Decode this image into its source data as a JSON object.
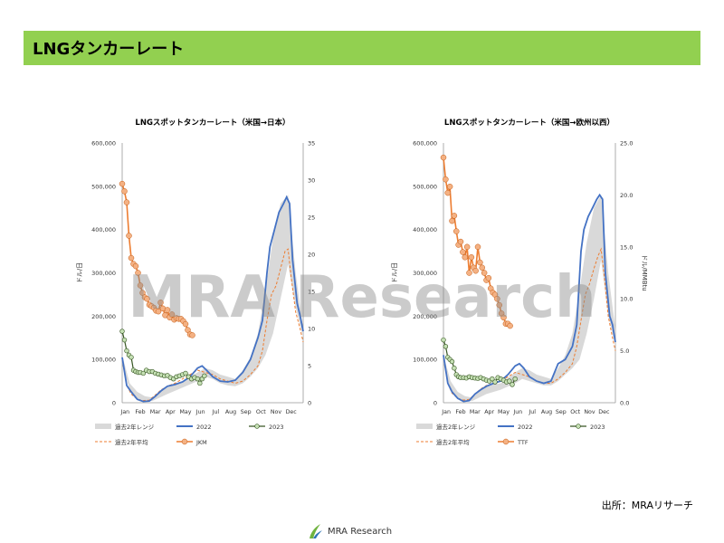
{
  "header": {
    "title": "LNGタンカーレート"
  },
  "watermark": "MRA Research",
  "footer": {
    "source": "出所：MRAリサーチ",
    "logo_text": "MRA Research"
  },
  "colors": {
    "header_bg": "#92d050",
    "range": "#d9d9d9",
    "y2022": "#4472c4",
    "y2023": "#375623",
    "avg": "#ed7d31",
    "marker_fill": "#f4b183",
    "green_fill": "#c5e0b4"
  },
  "chart_data": [
    {
      "type": "line",
      "title": "LNGスポットタンカーレート（米国→日本）",
      "ylabel": "ドル/日",
      "y2label": "ドル/MMBtu",
      "ylim": [
        0,
        600000
      ],
      "yticks": [
        "0",
        "100,000",
        "200,000",
        "300,000",
        "400,000",
        "500,000",
        "600,000"
      ],
      "y2lim": [
        0,
        35
      ],
      "y2ticks": [
        "0",
        "5",
        "10",
        "15",
        "20",
        "25",
        "30",
        "35"
      ],
      "xlim": [
        0,
        12
      ],
      "xticks": [
        "Jan",
        "Feb",
        "Mar",
        "Apr",
        "May",
        "Jun",
        "Jul",
        "Aug",
        "Sep",
        "Oct",
        "Nov",
        "Dec"
      ],
      "legend": [
        "過去2年レンジ",
        "2022",
        "2023",
        "過去2年平均",
        "JKM"
      ],
      "range_x": [
        0,
        0.5,
        1,
        1.5,
        2,
        3,
        4,
        5,
        5.5,
        6,
        6.5,
        7,
        7.5,
        8,
        8.5,
        9,
        9.5,
        10,
        10.5,
        11,
        11.5,
        12
      ],
      "range_lo": [
        90000,
        30000,
        10000,
        4000,
        4000,
        20000,
        35000,
        50000,
        60000,
        55000,
        45000,
        40000,
        38000,
        45000,
        60000,
        80000,
        110000,
        160000,
        240000,
        320000,
        220000,
        150000
      ],
      "range_hi": [
        110000,
        45000,
        25000,
        15000,
        12000,
        40000,
        50000,
        70000,
        80000,
        75000,
        65000,
        60000,
        55000,
        75000,
        105000,
        160000,
        260000,
        380000,
        460000,
        480000,
        300000,
        170000
      ],
      "s2022_x": [
        0,
        0.3,
        0.6,
        1,
        1.4,
        1.8,
        2.2,
        2.6,
        3,
        3.5,
        4,
        4.5,
        5,
        5.3,
        5.6,
        6,
        6.5,
        7,
        7.5,
        8,
        8.5,
        9,
        9.3,
        9.6,
        9.8,
        10.1,
        10.4,
        10.7,
        10.9,
        11.1,
        11.3,
        11.6,
        11.8,
        12
      ],
      "s2022_y": [
        105000,
        40000,
        25000,
        8000,
        3000,
        4000,
        15000,
        28000,
        38000,
        42000,
        48000,
        60000,
        80000,
        85000,
        75000,
        60000,
        50000,
        48000,
        52000,
        70000,
        100000,
        150000,
        190000,
        300000,
        360000,
        400000,
        440000,
        460000,
        475000,
        460000,
        330000,
        230000,
        200000,
        165000
      ],
      "s2023_x": [
        0,
        0.15,
        0.3,
        0.45,
        0.6,
        0.75,
        0.9,
        1.05,
        1.2,
        1.4,
        1.6,
        1.8,
        2,
        2.2,
        2.4,
        2.6,
        2.8,
        3,
        3.2,
        3.4,
        3.6,
        3.8,
        4,
        4.2,
        4.4,
        4.6,
        4.8,
        5,
        5.15,
        5.3,
        5.45
      ],
      "s2023_y": [
        165000,
        145000,
        120000,
        110000,
        105000,
        75000,
        72000,
        70000,
        70000,
        68000,
        75000,
        72000,
        72000,
        68000,
        66000,
        64000,
        62000,
        63000,
        58000,
        55000,
        60000,
        62000,
        65000,
        68000,
        60000,
        55000,
        58000,
        55000,
        45000,
        55000,
        62000
      ],
      "avg_x": [
        0,
        0.3,
        0.6,
        1,
        1.4,
        1.8,
        2.2,
        2.6,
        3,
        3.5,
        4,
        4.5,
        5,
        5.5,
        6,
        6.5,
        7,
        7.5,
        8,
        8.5,
        9,
        9.3,
        9.6,
        9.9,
        10.2,
        10.5,
        10.8,
        11,
        11.2,
        11.5,
        11.8,
        12
      ],
      "avg_y": [
        100000,
        40000,
        20000,
        8000,
        5000,
        6000,
        18000,
        30000,
        38000,
        45000,
        55000,
        65000,
        75000,
        70000,
        65000,
        55000,
        50000,
        45000,
        50000,
        65000,
        85000,
        120000,
        190000,
        250000,
        270000,
        310000,
        350000,
        355000,
        290000,
        210000,
        170000,
        140000
      ],
      "price_x": [
        0,
        0.15,
        0.3,
        0.45,
        0.6,
        0.75,
        0.9,
        1.05,
        1.2,
        1.35,
        1.5,
        1.65,
        1.8,
        1.95,
        2.1,
        2.25,
        2.4,
        2.55,
        2.7,
        2.85,
        3,
        3.15,
        3.3,
        3.45,
        3.6,
        3.75,
        3.9,
        4.05,
        4.2,
        4.35,
        4.5,
        4.65
      ],
      "price_y": [
        29.5,
        28.5,
        27,
        22.5,
        19.5,
        18.7,
        18.4,
        17.5,
        15.8,
        14.8,
        14.2,
        14,
        13.2,
        13,
        12.8,
        12.4,
        12.3,
        13.5,
        12.7,
        11.8,
        12.5,
        11.5,
        11.9,
        11.2,
        11.4,
        11.3,
        11.3,
        11,
        10.6,
        9.8,
        9.2,
        9.1
      ]
    },
    {
      "type": "line",
      "title": "LNGスポットタンカーレート（米国→欧州以西）",
      "ylabel": "ドル/日",
      "y2label": "ドル/MMBtu",
      "ylim": [
        0,
        600000
      ],
      "yticks": [
        "0",
        "100,000",
        "200,000",
        "300,000",
        "400,000",
        "500,000",
        "600,000"
      ],
      "y2lim": [
        0,
        25
      ],
      "y2ticks": [
        "0.0",
        "5.0",
        "10.0",
        "15.0",
        "20.0",
        "25.0"
      ],
      "xlim": [
        0,
        12
      ],
      "xticks": [
        "Jan",
        "Feb",
        "Mar",
        "Apr",
        "May",
        "Jun",
        "Jul",
        "Aug",
        "Sep",
        "Oct",
        "Nov",
        "Dec"
      ],
      "legend": [
        "過去2年レンジ",
        "2022",
        "2023",
        "過去2年平均",
        "TTF"
      ],
      "range_x": [
        0,
        0.5,
        1,
        1.5,
        2,
        3,
        4,
        5,
        5.5,
        6,
        6.5,
        7,
        7.5,
        8,
        8.5,
        9,
        9.5,
        10,
        10.5,
        11,
        11.5,
        12
      ],
      "range_lo": [
        90000,
        30000,
        10000,
        4000,
        4000,
        20000,
        30000,
        45000,
        55000,
        50000,
        45000,
        40000,
        40000,
        50000,
        65000,
        80000,
        100000,
        160000,
        240000,
        330000,
        200000,
        130000
      ],
      "range_hi": [
        110000,
        50000,
        25000,
        15000,
        12000,
        40000,
        45000,
        70000,
        80000,
        75000,
        65000,
        60000,
        55000,
        80000,
        110000,
        160000,
        260000,
        370000,
        450000,
        480000,
        300000,
        170000
      ],
      "s2022_x": [
        0,
        0.3,
        0.6,
        1,
        1.4,
        1.8,
        2.2,
        2.6,
        3,
        3.5,
        4,
        4.5,
        5,
        5.3,
        5.6,
        6,
        6.5,
        7,
        7.5,
        8,
        8.5,
        9,
        9.3,
        9.6,
        9.8,
        10.1,
        10.4,
        10.7,
        10.9,
        11.1,
        11.3,
        11.6,
        11.8,
        12
      ],
      "s2022_y": [
        110000,
        45000,
        25000,
        10000,
        3000,
        5000,
        20000,
        30000,
        38000,
        45000,
        50000,
        65000,
        85000,
        90000,
        80000,
        60000,
        50000,
        45000,
        50000,
        90000,
        100000,
        130000,
        180000,
        350000,
        400000,
        430000,
        450000,
        470000,
        480000,
        470000,
        300000,
        200000,
        180000,
        140000
      ],
      "s2023_x": [
        0,
        0.15,
        0.3,
        0.45,
        0.6,
        0.75,
        0.9,
        1.05,
        1.2,
        1.4,
        1.6,
        1.8,
        2,
        2.2,
        2.4,
        2.6,
        2.8,
        3,
        3.2,
        3.4,
        3.6,
        3.8,
        4,
        4.2,
        4.4,
        4.6,
        4.8,
        5
      ],
      "s2023_y": [
        145000,
        130000,
        105000,
        100000,
        95000,
        80000,
        65000,
        60000,
        58000,
        58000,
        57000,
        60000,
        58000,
        57000,
        56000,
        58000,
        55000,
        52000,
        50000,
        55000,
        48000,
        58000,
        55000,
        52000,
        48000,
        50000,
        42000,
        55000
      ],
      "avg_x": [
        0,
        0.3,
        0.6,
        1,
        1.4,
        1.8,
        2.2,
        2.6,
        3,
        3.5,
        4,
        4.5,
        5,
        5.5,
        6,
        6.5,
        7,
        7.5,
        8,
        8.5,
        9,
        9.3,
        9.6,
        9.9,
        10.2,
        10.5,
        10.8,
        11,
        11.2,
        11.5,
        11.8,
        12
      ],
      "avg_y": [
        105000,
        45000,
        22000,
        10000,
        6000,
        8000,
        20000,
        32000,
        40000,
        45000,
        50000,
        60000,
        70000,
        65000,
        60000,
        50000,
        45000,
        45000,
        55000,
        70000,
        90000,
        130000,
        190000,
        250000,
        275000,
        310000,
        340000,
        355000,
        300000,
        200000,
        150000,
        120000
      ],
      "price_x": [
        0,
        0.15,
        0.3,
        0.45,
        0.6,
        0.75,
        0.9,
        1.05,
        1.2,
        1.35,
        1.5,
        1.65,
        1.8,
        1.95,
        2.1,
        2.25,
        2.4,
        2.55,
        2.7,
        2.85,
        3,
        3.15,
        3.3,
        3.45,
        3.6,
        3.75,
        3.9,
        4.05,
        4.2,
        4.35,
        4.5,
        4.65
      ],
      "price_y": [
        23.6,
        21.5,
        20.2,
        20.8,
        17.5,
        18,
        16.5,
        15.2,
        15.5,
        14.5,
        14,
        15,
        12.5,
        14,
        13,
        12.7,
        15,
        13.5,
        13,
        12.5,
        11.8,
        12,
        11,
        10.6,
        10.4,
        10,
        9.4,
        8.6,
        8.2,
        7.6,
        7.6,
        7.4
      ]
    }
  ]
}
